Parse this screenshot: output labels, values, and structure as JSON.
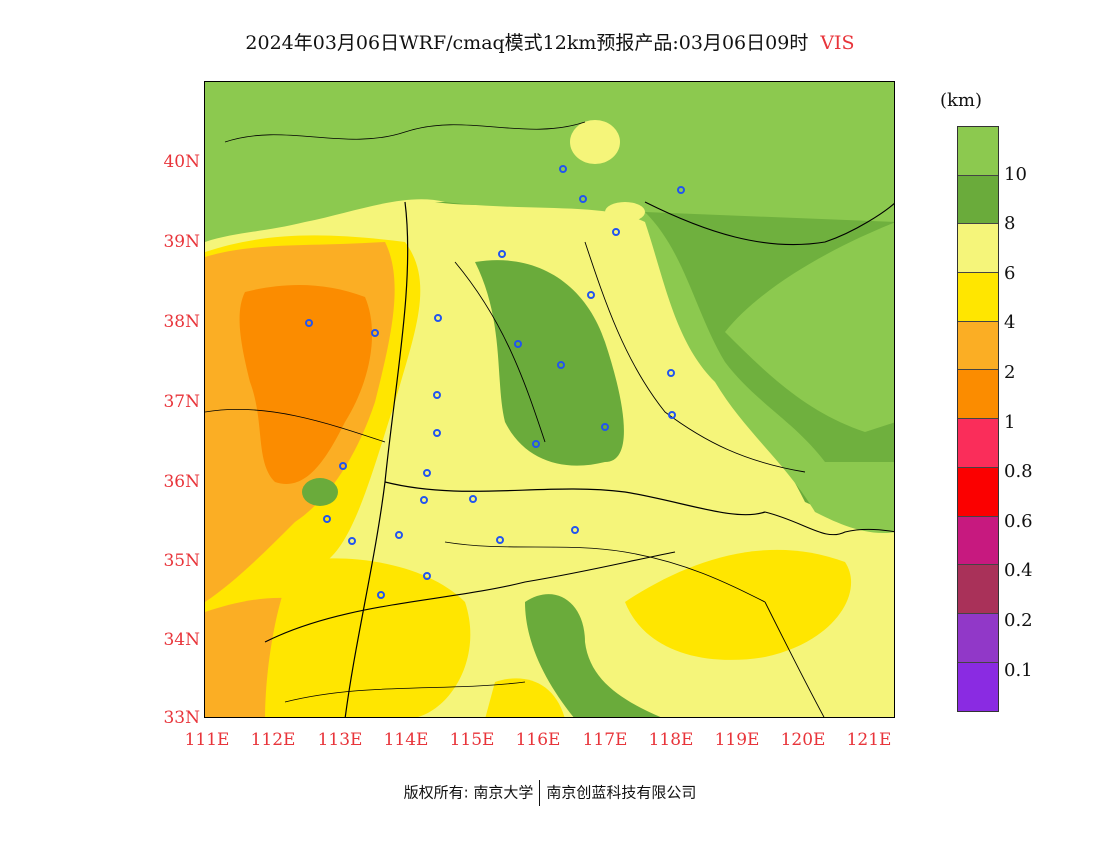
{
  "title": {
    "main": "2024年03月06日WRF/cmaq模式12km预报产品:03月06日09时",
    "variable": "VIS"
  },
  "map": {
    "lat_labels": [
      "40N",
      "39N",
      "38N",
      "37N",
      "36N",
      "35N",
      "34N",
      "33N"
    ],
    "lon_labels": [
      "111E",
      "112E",
      "113E",
      "114E",
      "115E",
      "116E",
      "117E",
      "118E",
      "119E",
      "120E",
      "121E"
    ]
  },
  "colorbar": {
    "unit": "(km)",
    "levels": [
      "10",
      "8",
      "6",
      "4",
      "2",
      "1",
      "0.8",
      "0.6",
      "0.4",
      "0.2",
      "0.1"
    ],
    "colors": [
      "#8cc94f",
      "#6aab3b",
      "#f5f57a",
      "#ffe600",
      "#fbae24",
      "#fb8c00",
      "#fa2d5a",
      "#fb0000",
      "#c7197f",
      "#a93159",
      "#9138c8",
      "#8a2be2"
    ]
  },
  "footer": {
    "copyright": "版权所有: 南京大学",
    "company": "南京创蓝科技有限公司"
  }
}
